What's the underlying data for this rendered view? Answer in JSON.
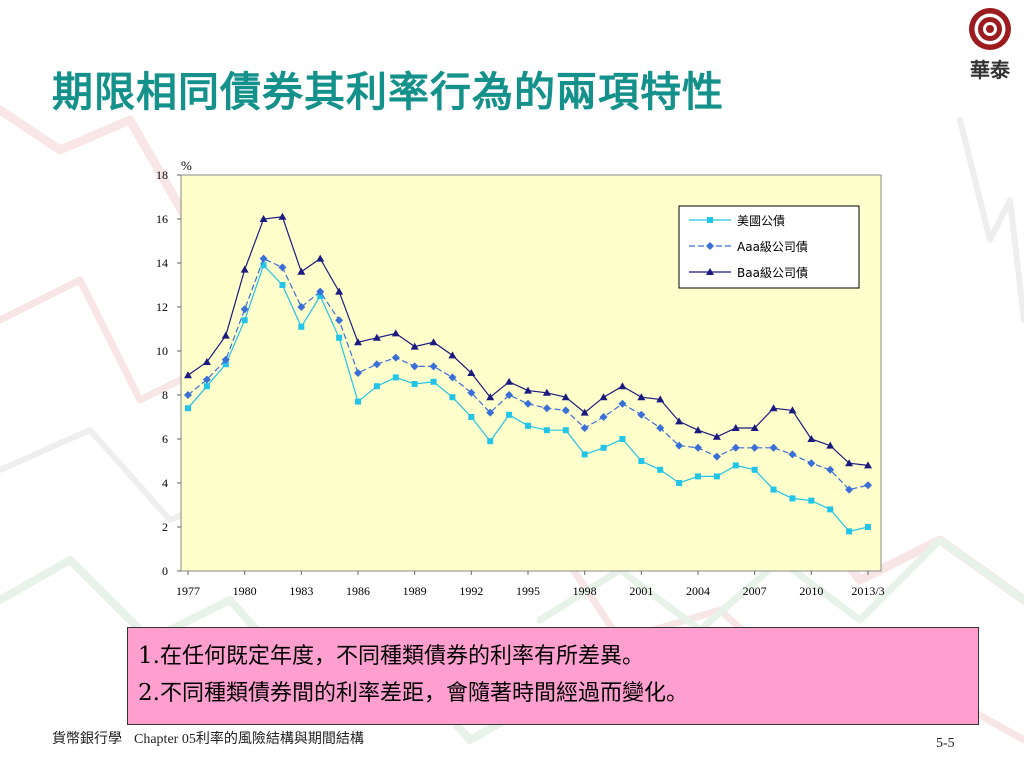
{
  "slide": {
    "title": "期限相同債券其利率行為的兩項特性",
    "logo_text": "華泰",
    "notes": [
      {
        "num": "1.",
        "text": "在任何既定年度，不同種類債券的利率有所差異。"
      },
      {
        "num": "2.",
        "text": "不同種類債券間的利率差距，會隨著時間經過而變化。"
      }
    ],
    "footer": {
      "course": "貨幣銀行學",
      "chapter": "Chapter 05利率的風險結構與期間結構",
      "page": "5-5"
    },
    "colors": {
      "title": "#15918c",
      "note_box": "#ff9fcf",
      "plot_bg": "#ffffcc"
    }
  },
  "chart_data": {
    "type": "line",
    "unit_label": "%",
    "ylim": [
      0,
      18
    ],
    "yticks": [
      0,
      2,
      4,
      6,
      8,
      10,
      12,
      14,
      16,
      18
    ],
    "x_tick_labels": [
      "1977",
      "1980",
      "1983",
      "1986",
      "1989",
      "1992",
      "1995",
      "1998",
      "2001",
      "2004",
      "2007",
      "2010",
      "2013/3"
    ],
    "legend_position": "top-right",
    "grid": false,
    "series": [
      {
        "name": "美國公債",
        "color": "#22c4e8",
        "marker": "square",
        "dash": "solid",
        "values": [
          7.4,
          8.4,
          9.4,
          11.4,
          13.9,
          13.0,
          11.1,
          12.5,
          10.6,
          7.7,
          8.4,
          8.8,
          8.5,
          8.6,
          7.9,
          7.0,
          5.9,
          7.1,
          6.6,
          6.4,
          6.4,
          5.3,
          5.6,
          6.0,
          5.0,
          4.6,
          4.0,
          4.3,
          4.3,
          4.8,
          4.6,
          3.7,
          3.3,
          3.2,
          2.8,
          1.8,
          2.0
        ]
      },
      {
        "name": "Aaa級公司債",
        "color": "#3a6fd8",
        "marker": "diamond",
        "dash": "dashed",
        "values": [
          8.0,
          8.7,
          9.6,
          11.9,
          14.2,
          13.8,
          12.0,
          12.7,
          11.4,
          9.0,
          9.4,
          9.7,
          9.3,
          9.3,
          8.8,
          8.1,
          7.2,
          8.0,
          7.6,
          7.4,
          7.3,
          6.5,
          7.0,
          7.6,
          7.1,
          6.5,
          5.7,
          5.6,
          5.2,
          5.6,
          5.6,
          5.6,
          5.3,
          4.9,
          4.6,
          3.7,
          3.9
        ]
      },
      {
        "name": "Baa級公司債",
        "color": "#1a1a80",
        "marker": "triangle",
        "dash": "solid",
        "values": [
          8.9,
          9.5,
          10.7,
          13.7,
          16.0,
          16.1,
          13.6,
          14.2,
          12.7,
          10.4,
          10.6,
          10.8,
          10.2,
          10.4,
          9.8,
          9.0,
          7.9,
          8.6,
          8.2,
          8.1,
          7.9,
          7.2,
          7.9,
          8.4,
          7.9,
          7.8,
          6.8,
          6.4,
          6.1,
          6.5,
          6.5,
          7.4,
          7.3,
          6.0,
          5.7,
          4.9,
          4.8
        ]
      }
    ]
  }
}
